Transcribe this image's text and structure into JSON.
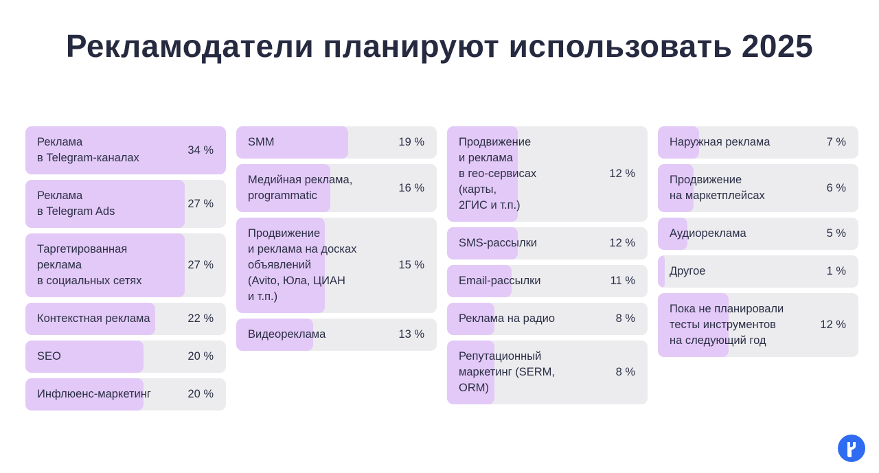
{
  "title": "Рекламодатели планируют использовать 2025",
  "colors": {
    "fill": "#e3c9f7",
    "card": "#ececef",
    "text": "#2b2f45",
    "logo": "#2f6cf2"
  },
  "logo_icon": "brand-logo-icon",
  "chart_data": {
    "type": "bar",
    "orientation": "horizontal",
    "unit": "%",
    "ylim": [
      0,
      34
    ],
    "columns": [
      [
        {
          "label": "Реклама\nв Telegram-каналах",
          "value": 34,
          "value_label": "34 %"
        },
        {
          "label": "Реклама\nв Telegram Ads",
          "value": 27,
          "value_label": "27 %"
        },
        {
          "label": "Таргетированная\nреклама\nв социальных сетях",
          "value": 27,
          "value_label": "27 %"
        },
        {
          "label": "Контекстная реклама",
          "value": 22,
          "value_label": "22 %"
        },
        {
          "label": "SEO",
          "value": 20,
          "value_label": "20 %"
        },
        {
          "label": "Инфлюенс-маркетинг",
          "value": 20,
          "value_label": "20 %"
        }
      ],
      [
        {
          "label": "SMM",
          "value": 19,
          "value_label": "19 %"
        },
        {
          "label": "Медийная реклама,\nprogrammatic",
          "value": 16,
          "value_label": "16 %"
        },
        {
          "label": "Продвижение\nи реклама на досках\nобъявлений\n(Avito, Юла, ЦИАН\nи т.п.)",
          "value": 15,
          "value_label": "15 %"
        },
        {
          "label": "Видеореклама",
          "value": 13,
          "value_label": "13 %"
        }
      ],
      [
        {
          "label": "Продвижение\nи реклама\nв гео-сервисах\n(карты,\n2ГИС и т.п.)",
          "value": 12,
          "value_label": "12 %"
        },
        {
          "label": "SMS-рассылки",
          "value": 12,
          "value_label": "12 %"
        },
        {
          "label": "Email-рассылки",
          "value": 11,
          "value_label": "11 %"
        },
        {
          "label": "Реклама на радио",
          "value": 8,
          "value_label": "8 %"
        },
        {
          "label": "Репутационный\nмаркетинг (SERM,\nORM)",
          "value": 8,
          "value_label": "8 %"
        }
      ],
      [
        {
          "label": "Наружная реклама",
          "value": 7,
          "value_label": "7 %"
        },
        {
          "label": "Продвижение\nна маркетплейсах",
          "value": 6,
          "value_label": "6 %"
        },
        {
          "label": "Аудиореклама",
          "value": 5,
          "value_label": "5 %"
        },
        {
          "label": "Другое",
          "value": 1,
          "value_label": "1 %"
        },
        {
          "label": "Пока не планировали\nтесты инструментов\nна следующий год",
          "value": 12,
          "value_label": "12 %"
        }
      ]
    ]
  }
}
